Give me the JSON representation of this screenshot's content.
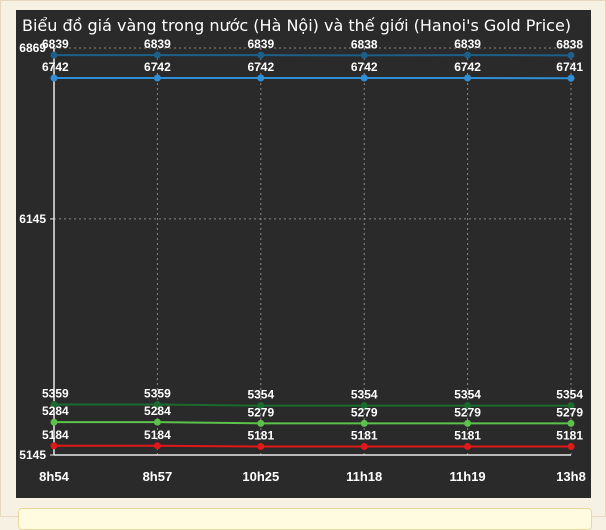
{
  "chart_data": {
    "type": "line",
    "title": "Biểu đồ giá vàng trong nước (Hà Nội) và thế giới (Hanoi's Gold Price)",
    "categories": [
      "8h54",
      "8h57",
      "10h25",
      "11h18",
      "11h19",
      "13h8"
    ],
    "y_ticks": [
      5145,
      6145,
      6869
    ],
    "ylim": [
      5145,
      6869
    ],
    "grid": true,
    "series": [
      {
        "values": [
          6839,
          6839,
          6839,
          6838,
          6839,
          6838
        ],
        "color": "#1c5f88"
      },
      {
        "values": [
          6742,
          6742,
          6742,
          6742,
          6742,
          6741
        ],
        "color": "#2f8fd6"
      },
      {
        "values": [
          5359,
          5359,
          5354,
          5354,
          5354,
          5354
        ],
        "color": "#1a6b2e"
      },
      {
        "values": [
          5284,
          5284,
          5279,
          5279,
          5279,
          5279
        ],
        "color": "#5cc24a"
      },
      {
        "values": [
          5184,
          5184,
          5181,
          5181,
          5181,
          5181
        ],
        "color": "#e21818"
      }
    ]
  }
}
